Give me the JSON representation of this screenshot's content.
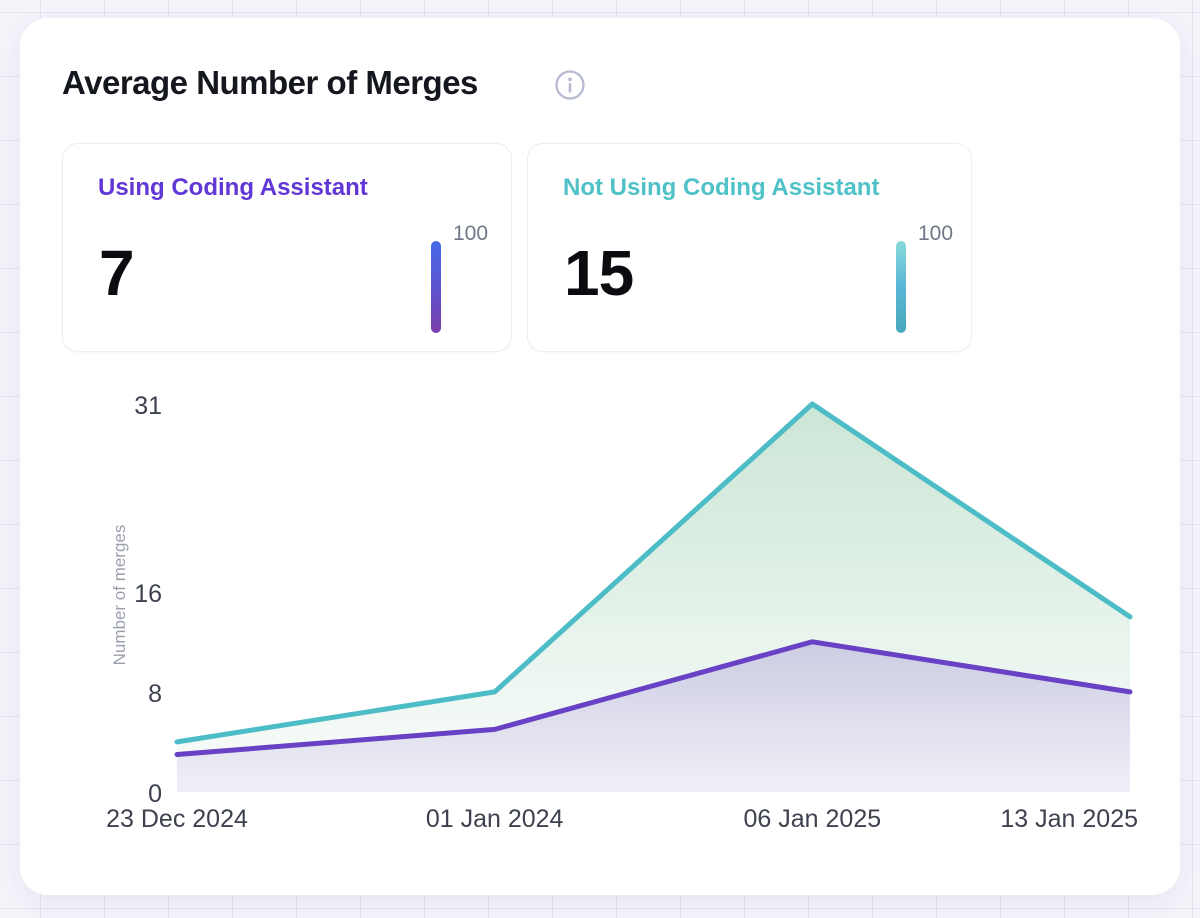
{
  "panel": {
    "title": "Average Number of Merges"
  },
  "stat_cards": [
    {
      "label": "Using Coding Assistant",
      "value": "7",
      "scale_max": "100",
      "label_color": "#6137d6",
      "bar_gradient": [
        "#4569e8",
        "#5d54d0",
        "#7b3dab"
      ]
    },
    {
      "label": "Not Using Coding Assistant",
      "value": "15",
      "scale_max": "100",
      "label_color": "#4fc2c7",
      "bar_gradient": [
        "#87dada",
        "#5ab6d7",
        "#47a8ba"
      ]
    }
  ],
  "chart_data": {
    "type": "area",
    "title": "Average Number of Merges",
    "x": [
      "23 Dec 2024",
      "01 Jan 2024",
      "06 Jan 2025",
      "13 Jan 2025"
    ],
    "series": [
      {
        "name": "Not Using Coding Assistant",
        "values": [
          4,
          8,
          31,
          14
        ],
        "line_color": "#4cbcc6",
        "fill_top": "rgba(118,188,146,0.38)",
        "fill_bottom": "rgba(118,188,146,0.03)"
      },
      {
        "name": "Using Coding Assistant",
        "values": [
          3,
          5,
          12,
          8
        ],
        "line_color": "#6841c4",
        "fill_top": "rgba(105,64,196,0.22)",
        "fill_bottom": "rgba(105,64,196,0.07)"
      }
    ],
    "xlabel": "",
    "ylabel": "Number of merges",
    "y_ticks": [
      0,
      8,
      16,
      31
    ],
    "ylim": [
      0,
      31
    ],
    "grid": false,
    "legend_position": "none"
  }
}
